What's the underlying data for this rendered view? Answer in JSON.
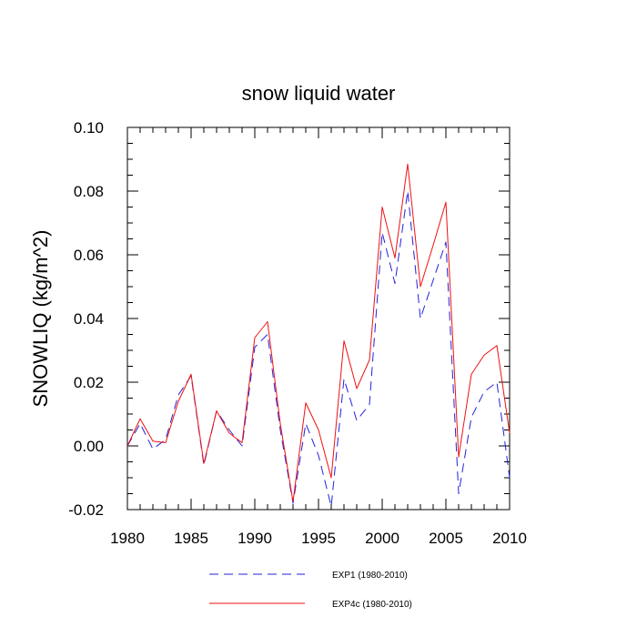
{
  "chart_data": {
    "type": "line",
    "title": "snow liquid water",
    "xlabel": "",
    "ylabel": "SNOWLIQ  (kg/m^2)",
    "xlim": [
      1980,
      2010
    ],
    "ylim": [
      -0.02,
      0.1
    ],
    "xticks": [
      "1980",
      "1985",
      "1990",
      "1995",
      "2000",
      "2005",
      "2010"
    ],
    "yticks": [
      "-0.02",
      "0.00",
      "0.02",
      "0.04",
      "0.06",
      "0.08",
      "0.10"
    ],
    "grid": false,
    "legend_position": "bottom",
    "x": [
      1980,
      1981,
      1982,
      1983,
      1984,
      1985,
      1986,
      1987,
      1988,
      1989,
      1990,
      1991,
      1992,
      1993,
      1994,
      1995,
      1996,
      1997,
      1998,
      1999,
      2000,
      2001,
      2002,
      2003,
      2004,
      2005,
      2006,
      2007,
      2008,
      2009,
      2010
    ],
    "series": [
      {
        "name": "EXP1 (1980-2010)",
        "color": "#2222dd",
        "dash": "dashed",
        "values": [
          0.0,
          0.007,
          -0.001,
          0.002,
          0.016,
          0.022,
          -0.006,
          0.011,
          0.005,
          0.0,
          0.031,
          0.035,
          0.005,
          -0.018,
          0.007,
          -0.003,
          -0.019,
          0.021,
          0.008,
          0.013,
          0.067,
          0.051,
          0.08,
          0.04,
          0.052,
          0.064,
          -0.015,
          0.009,
          0.017,
          0.02,
          -0.01
        ]
      },
      {
        "name": "EXP4c (1980-2010)",
        "color": "#ee1111",
        "dash": "solid",
        "values": [
          0.0,
          0.0085,
          0.0015,
          0.001,
          0.014,
          0.0225,
          -0.0055,
          0.011,
          0.004,
          0.001,
          0.034,
          0.039,
          0.007,
          -0.0175,
          0.0135,
          0.005,
          -0.01,
          0.033,
          0.018,
          0.027,
          0.075,
          0.059,
          0.0885,
          0.05,
          0.063,
          0.0765,
          -0.0035,
          0.0225,
          0.0285,
          0.0315,
          0.004
        ]
      }
    ]
  }
}
